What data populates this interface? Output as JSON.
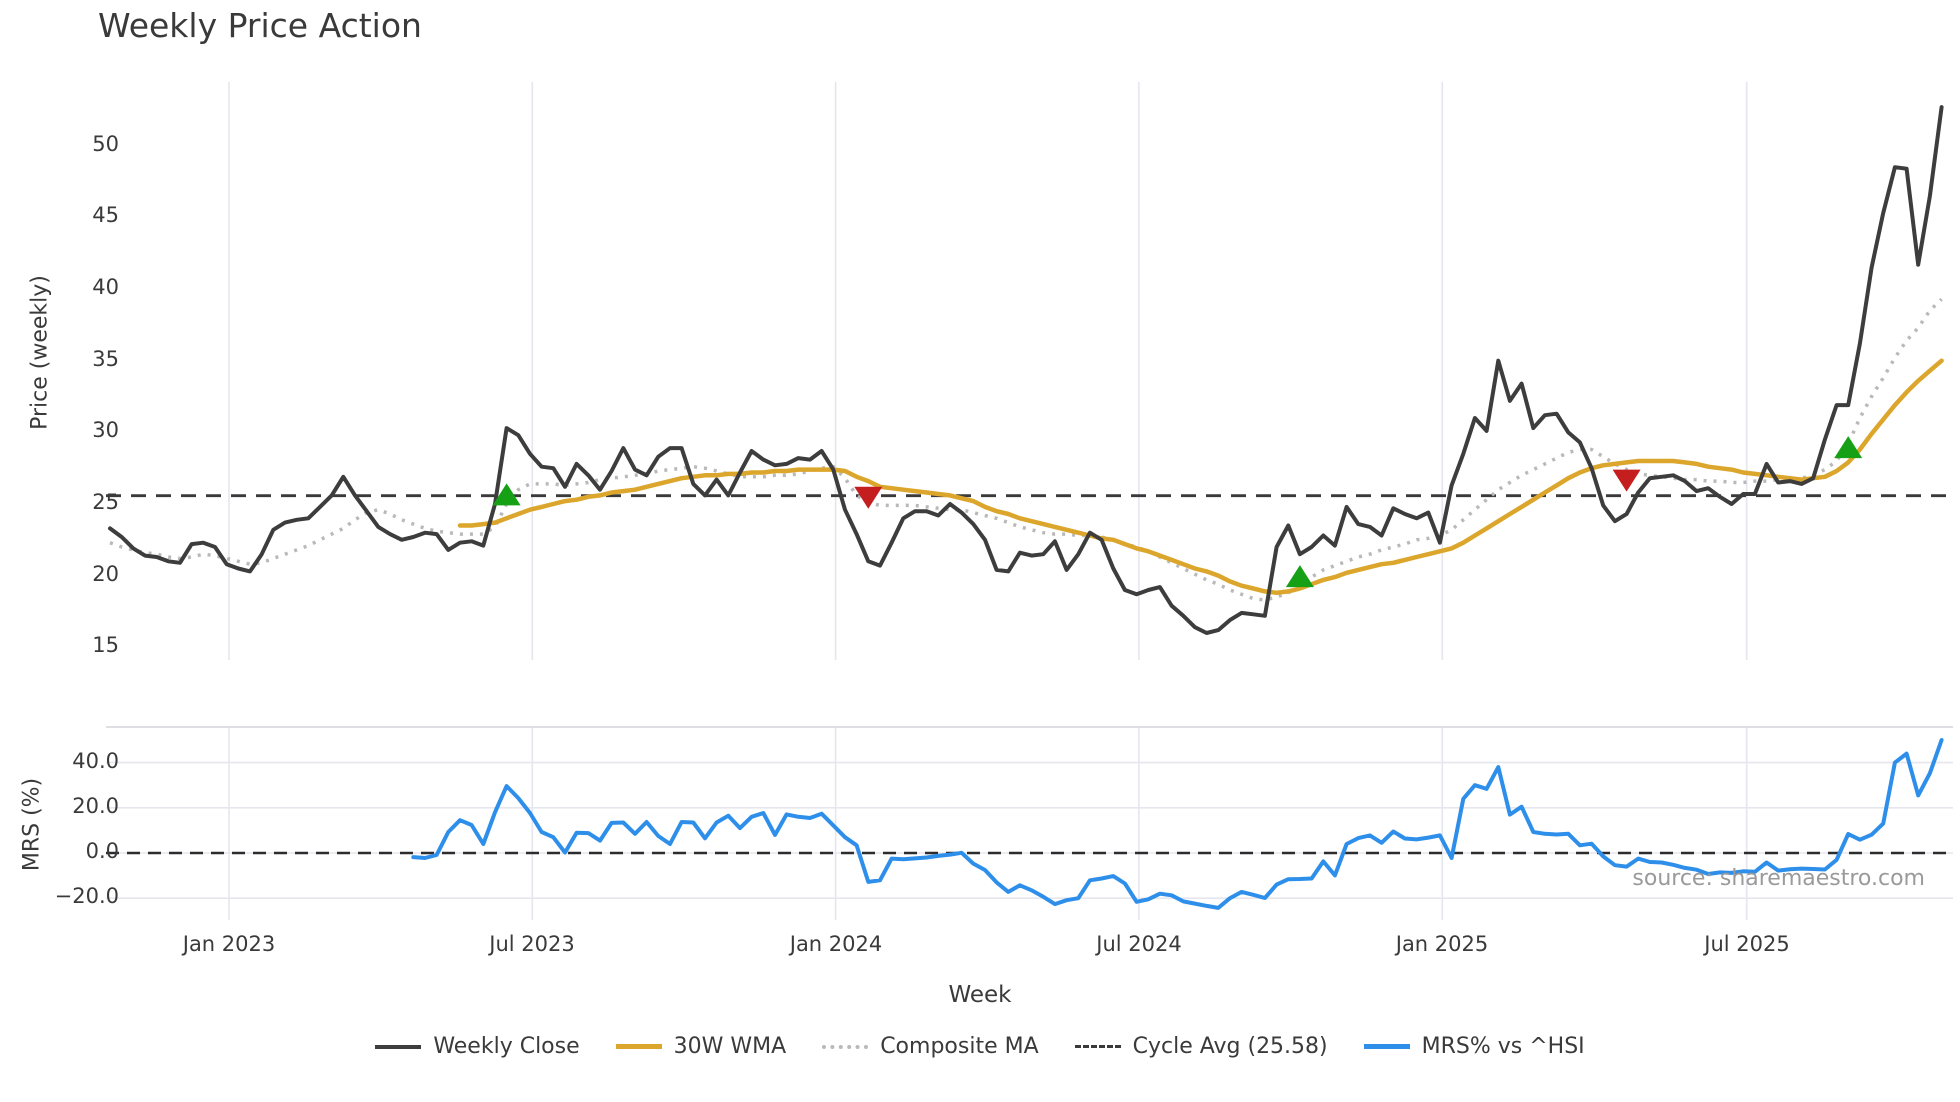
{
  "title": "Weekly Price Action",
  "watermark": "source: sharemaestro.com",
  "axis_labels": {
    "y_main": "Price (weekly)",
    "y_mrs": "MRS (%)",
    "x": "Week"
  },
  "legend": {
    "items": [
      {
        "id": "close",
        "label": "Weekly Close"
      },
      {
        "id": "wma",
        "label": "30W WMA"
      },
      {
        "id": "composite",
        "label": "Composite MA"
      },
      {
        "id": "cycle",
        "label": "Cycle Avg (25.58)"
      },
      {
        "id": "mrs",
        "label": "MRS% vs ^HSI"
      }
    ]
  },
  "colors": {
    "close": "#3d3d3d",
    "wma": "#DBA62B",
    "composite": "#b9b9b9",
    "cycle": "#3a3a3a",
    "mrs": "#2E8FEA",
    "grid": "#e6e6ee",
    "panel_border": "#d9d9e1",
    "zero_line": "#2c2c2c",
    "marker_up": "#16A016",
    "marker_down": "#C41E1E",
    "text": "#3a3a3a",
    "watermark": "#9a9a9a"
  },
  "chart_data": {
    "type": "line",
    "x_unit": "weeks",
    "n_points": 158,
    "x_ticks": {
      "weeks": [
        10.2,
        36.2,
        62.2,
        88.2,
        114.2,
        140.3
      ],
      "labels": [
        "Jan 2023",
        "Jul 2023",
        "Jan 2024",
        "Jul 2024",
        "Jan 2025",
        "Jul 2025"
      ]
    },
    "panels": [
      {
        "id": "price",
        "ylabel": "Price (weekly)",
        "ylim": [
          14.1,
          54.5
        ],
        "yticks": [
          50,
          45,
          40,
          35,
          30,
          25,
          20,
          15
        ],
        "ytick_labels": [
          "50",
          "45",
          "40",
          "35",
          "30",
          "25",
          "20",
          "15"
        ],
        "grid": "vertical-only"
      },
      {
        "id": "mrs",
        "ylabel": "MRS (%)",
        "ylim": [
          -29.5,
          55.5
        ],
        "yticks": [
          40,
          20,
          0,
          -20
        ],
        "ytick_labels": [
          "40.0",
          "20.0",
          "0.0",
          "−20.0"
        ],
        "grid": "both",
        "zero_line_dashed": true
      }
    ],
    "cycle_avg": 25.58,
    "legend_position": "bottom-center",
    "series": [
      {
        "name": "Weekly Close",
        "panel": "price",
        "style": "solid",
        "values": [
          23.3,
          22.7,
          21.9,
          21.4,
          21.3,
          21.0,
          20.9,
          22.2,
          22.3,
          22.0,
          20.8,
          20.5,
          20.3,
          21.5,
          23.2,
          23.7,
          23.9,
          24.0,
          24.8,
          25.6,
          26.9,
          25.6,
          24.5,
          23.4,
          22.9,
          22.5,
          22.7,
          23.0,
          22.9,
          21.8,
          22.3,
          22.4,
          22.1,
          25.0,
          30.3,
          29.8,
          28.5,
          27.6,
          27.5,
          26.2,
          27.8,
          27.0,
          26.0,
          27.3,
          28.9,
          27.4,
          27.0,
          28.3,
          28.9,
          28.9,
          26.4,
          25.6,
          26.7,
          25.6,
          27.2,
          28.7,
          28.1,
          27.7,
          27.8,
          28.2,
          28.1,
          28.7,
          27.4,
          24.6,
          22.9,
          21.0,
          20.7,
          22.3,
          24.0,
          24.5,
          24.5,
          24.2,
          25.0,
          24.4,
          23.6,
          22.5,
          20.4,
          20.3,
          21.6,
          21.4,
          21.5,
          22.4,
          20.4,
          21.5,
          23.0,
          22.5,
          20.5,
          19.0,
          18.7,
          19.0,
          19.2,
          17.9,
          17.2,
          16.4,
          16.0,
          16.2,
          16.9,
          17.4,
          17.3,
          17.2,
          22.0,
          23.5,
          21.5,
          22.0,
          22.8,
          22.1,
          24.8,
          23.6,
          23.4,
          22.8,
          24.7,
          24.3,
          24.0,
          24.4,
          22.3,
          26.3,
          28.5,
          31.0,
          30.1,
          35.0,
          32.2,
          33.4,
          30.3,
          31.2,
          31.3,
          30.0,
          29.3,
          27.5,
          24.9,
          23.8,
          24.3,
          25.8,
          26.8,
          26.9,
          27.0,
          26.6,
          25.9,
          26.1,
          25.5,
          25.0,
          25.7,
          25.7,
          27.8,
          26.5,
          26.6,
          26.4,
          26.8,
          29.5,
          31.9,
          31.9,
          36.2,
          41.5,
          45.3,
          48.5,
          48.4,
          41.7,
          46.5,
          52.7
        ]
      },
      {
        "name": "30W WMA",
        "panel": "price",
        "style": "solid",
        "values": [
          null,
          null,
          null,
          null,
          null,
          null,
          null,
          null,
          null,
          null,
          null,
          null,
          null,
          null,
          null,
          null,
          null,
          null,
          null,
          null,
          null,
          null,
          null,
          null,
          null,
          null,
          null,
          null,
          null,
          null,
          23.5,
          23.5,
          23.6,
          23.7,
          24.0,
          24.3,
          24.6,
          24.8,
          25.0,
          25.2,
          25.3,
          25.5,
          25.6,
          25.8,
          25.9,
          26.0,
          26.2,
          26.4,
          26.6,
          26.8,
          26.9,
          27.0,
          27.0,
          27.1,
          27.1,
          27.2,
          27.2,
          27.3,
          27.3,
          27.4,
          27.4,
          27.4,
          27.4,
          27.3,
          26.9,
          26.6,
          26.2,
          26.1,
          26.0,
          25.9,
          25.8,
          25.7,
          25.6,
          25.4,
          25.2,
          24.8,
          24.5,
          24.3,
          24.0,
          23.8,
          23.6,
          23.4,
          23.2,
          23.0,
          22.8,
          22.6,
          22.5,
          22.2,
          21.9,
          21.7,
          21.4,
          21.1,
          20.8,
          20.5,
          20.3,
          20.0,
          19.6,
          19.3,
          19.1,
          18.9,
          18.8,
          18.9,
          19.1,
          19.4,
          19.7,
          19.9,
          20.2,
          20.4,
          20.6,
          20.8,
          20.9,
          21.1,
          21.3,
          21.5,
          21.7,
          21.9,
          22.3,
          22.8,
          23.3,
          23.8,
          24.3,
          24.8,
          25.3,
          25.8,
          26.3,
          26.8,
          27.2,
          27.5,
          27.7,
          27.8,
          27.9,
          28.0,
          28.0,
          28.0,
          28.0,
          27.9,
          27.8,
          27.6,
          27.5,
          27.4,
          27.2,
          27.1,
          27.0,
          26.9,
          26.8,
          26.7,
          26.8,
          26.9,
          27.3,
          27.9,
          28.8,
          29.9,
          30.9,
          31.9,
          32.8,
          33.6,
          34.3,
          35.0
        ]
      },
      {
        "name": "Composite MA",
        "panel": "price",
        "style": "dotted",
        "values": [
          22.3,
          22.0,
          21.8,
          21.6,
          21.5,
          21.3,
          21.2,
          21.3,
          21.5,
          21.4,
          21.2,
          21.0,
          20.8,
          20.9,
          21.2,
          21.5,
          21.8,
          22.1,
          22.5,
          22.9,
          23.3,
          23.9,
          24.4,
          24.6,
          24.3,
          23.9,
          23.6,
          23.3,
          23.1,
          23.0,
          22.9,
          22.9,
          22.9,
          23.4,
          25.0,
          26.0,
          26.4,
          26.4,
          26.4,
          26.3,
          26.4,
          26.5,
          26.7,
          26.8,
          26.9,
          27.0,
          27.1,
          27.3,
          27.4,
          27.5,
          27.6,
          27.5,
          27.3,
          27.1,
          26.9,
          26.9,
          26.9,
          27.0,
          27.0,
          27.1,
          27.3,
          27.5,
          27.6,
          26.8,
          25.6,
          25.1,
          24.9,
          24.9,
          24.9,
          24.9,
          24.8,
          24.7,
          24.6,
          24.6,
          24.4,
          24.2,
          24.0,
          23.7,
          23.4,
          23.2,
          23.0,
          22.9,
          22.9,
          22.8,
          22.8,
          22.7,
          22.5,
          22.2,
          22.0,
          21.7,
          21.3,
          20.9,
          20.5,
          20.1,
          19.7,
          19.4,
          19.0,
          18.7,
          18.4,
          18.3,
          18.5,
          18.8,
          19.3,
          19.9,
          20.4,
          20.7,
          21.0,
          21.3,
          21.5,
          21.8,
          22.0,
          22.2,
          22.5,
          22.6,
          22.8,
          23.2,
          23.9,
          24.6,
          25.3,
          26.0,
          26.5,
          27.0,
          27.4,
          27.8,
          28.2,
          28.6,
          28.8,
          28.8,
          28.3,
          27.8,
          27.4,
          27.1,
          27.0,
          26.9,
          26.8,
          26.7,
          26.7,
          26.6,
          26.6,
          26.5,
          26.5,
          26.6,
          26.6,
          26.7,
          26.7,
          26.8,
          27.0,
          27.4,
          28.0,
          29.2,
          31.0,
          32.5,
          33.8,
          35.2,
          36.4,
          37.3,
          38.5,
          39.3
        ]
      },
      {
        "name": "MRS% vs ^HSI",
        "panel": "mrs",
        "style": "solid",
        "values": [
          null,
          null,
          null,
          null,
          null,
          null,
          null,
          null,
          null,
          null,
          null,
          null,
          null,
          null,
          null,
          null,
          null,
          null,
          null,
          null,
          null,
          null,
          null,
          null,
          null,
          null,
          -1.8,
          -2.2,
          -0.9,
          9.3,
          14.5,
          12.4,
          4.0,
          18.0,
          29.6,
          24.3,
          17.7,
          9.3,
          7.0,
          0.2,
          9.0,
          8.8,
          5.5,
          13.3,
          13.5,
          8.5,
          13.7,
          7.5,
          4.0,
          13.7,
          13.5,
          6.5,
          13.5,
          16.5,
          11.0,
          16.0,
          17.7,
          8.0,
          17.1,
          16.0,
          15.5,
          17.4,
          12.2,
          7.0,
          3.4,
          -12.8,
          -12.1,
          -2.5,
          -2.8,
          -2.4,
          -2.0,
          -1.3,
          -0.7,
          0.1,
          -4.7,
          -7.5,
          -13.0,
          -17.2,
          -14.3,
          -16.5,
          -19.4,
          -22.6,
          -20.9,
          -20.0,
          -12.1,
          -11.3,
          -10.2,
          -13.5,
          -21.6,
          -20.5,
          -18.0,
          -18.7,
          -21.4,
          -22.4,
          -23.4,
          -24.3,
          -20.0,
          -17.2,
          -18.5,
          -19.9,
          -14.0,
          -11.6,
          -11.5,
          -11.3,
          -3.7,
          -9.9,
          4.0,
          6.6,
          7.8,
          4.5,
          9.5,
          6.4,
          6.0,
          6.8,
          7.8,
          -2.2,
          24.0,
          30.0,
          28.4,
          38.0,
          17.0,
          20.5,
          9.3,
          8.5,
          8.2,
          8.5,
          3.4,
          4.1,
          -1.5,
          -5.4,
          -6.0,
          -2.5,
          -4.0,
          -4.2,
          -5.2,
          -6.6,
          -7.4,
          -9.3,
          -8.6,
          -8.8,
          -8.1,
          -8.3,
          -4.2,
          -7.8,
          -7.2,
          -6.9,
          -7.1,
          -7.3,
          -3.0,
          8.4,
          5.9,
          8.1,
          13.0,
          40.0,
          44.0,
          25.5,
          35.3,
          50.0
        ]
      }
    ],
    "markers": {
      "buy_up_triangles": [
        {
          "week": 34,
          "price": 25.6
        },
        {
          "week": 102,
          "price": 19.9
        },
        {
          "week": 149,
          "price": 28.9
        }
      ],
      "sell_down_triangles": [
        {
          "week": 65,
          "price": 25.5
        },
        {
          "week": 130,
          "price": 26.7
        }
      ]
    }
  }
}
